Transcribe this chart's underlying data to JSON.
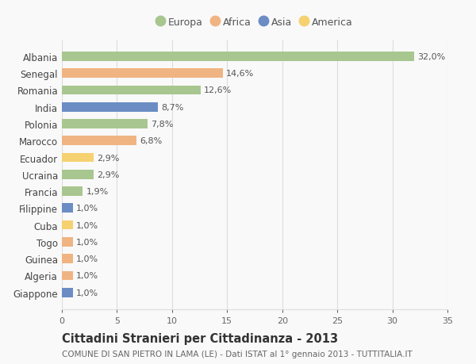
{
  "countries": [
    "Albania",
    "Senegal",
    "Romania",
    "India",
    "Polonia",
    "Marocco",
    "Ecuador",
    "Ucraina",
    "Francia",
    "Filippine",
    "Cuba",
    "Togo",
    "Guinea",
    "Algeria",
    "Giappone"
  ],
  "values": [
    32.0,
    14.6,
    12.6,
    8.7,
    7.8,
    6.8,
    2.9,
    2.9,
    1.9,
    1.0,
    1.0,
    1.0,
    1.0,
    1.0,
    1.0
  ],
  "labels": [
    "32,0%",
    "14,6%",
    "12,6%",
    "8,7%",
    "7,8%",
    "6,8%",
    "2,9%",
    "2,9%",
    "1,9%",
    "1,0%",
    "1,0%",
    "1,0%",
    "1,0%",
    "1,0%",
    "1,0%"
  ],
  "continents": [
    "Europa",
    "Africa",
    "Europa",
    "Asia",
    "Europa",
    "Africa",
    "America",
    "Europa",
    "Europa",
    "Asia",
    "America",
    "Africa",
    "Africa",
    "Africa",
    "Asia"
  ],
  "colors": {
    "Europa": "#a8c68f",
    "Africa": "#f0b482",
    "Asia": "#6b8dc4",
    "America": "#f5d170"
  },
  "legend_order": [
    "Europa",
    "Africa",
    "Asia",
    "America"
  ],
  "xlim": [
    0,
    35
  ],
  "xticks": [
    0,
    5,
    10,
    15,
    20,
    25,
    30,
    35
  ],
  "title": "Cittadini Stranieri per Cittadinanza - 2013",
  "subtitle": "COMUNE DI SAN PIETRO IN LAMA (LE) - Dati ISTAT al 1° gennaio 2013 - TUTTITALIA.IT",
  "bg_color": "#f9f9f9",
  "grid_color": "#dddddd",
  "bar_height": 0.55,
  "label_fontsize": 8,
  "ytick_fontsize": 8.5,
  "xtick_fontsize": 8,
  "title_fontsize": 10.5,
  "subtitle_fontsize": 7.5
}
